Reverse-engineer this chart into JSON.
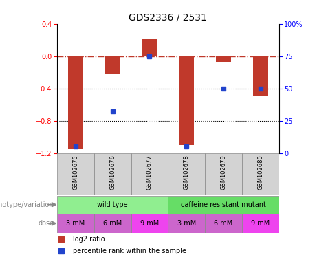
{
  "title": "GDS2336 / 2531",
  "samples": [
    "GSM102675",
    "GSM102676",
    "GSM102677",
    "GSM102678",
    "GSM102679",
    "GSM102680"
  ],
  "log2_ratios": [
    -1.15,
    -0.22,
    0.22,
    -1.1,
    -0.07,
    -0.5
  ],
  "percentile_ranks": [
    5,
    32,
    75,
    5,
    50,
    50
  ],
  "bar_color": "#c0392b",
  "dot_color": "#2244cc",
  "ylim_left": [
    -1.2,
    0.4
  ],
  "ylim_right": [
    0,
    100
  ],
  "yticks_left": [
    -1.2,
    -0.8,
    -0.4,
    0.0,
    0.4
  ],
  "yticks_right": [
    0,
    25,
    50,
    75,
    100
  ],
  "dotted_lines": [
    -0.4,
    -0.8
  ],
  "genotype_groups": [
    {
      "label": "wild type",
      "color": "#90ee90",
      "start": 0,
      "end": 3
    },
    {
      "label": "caffeine resistant mutant",
      "color": "#66dd66",
      "start": 3,
      "end": 6
    }
  ],
  "doses": [
    "3 mM",
    "6 mM",
    "9 mM",
    "3 mM",
    "6 mM",
    "9 mM"
  ],
  "dose_colors": [
    "#cc66cc",
    "#cc66cc",
    "#ee44ee",
    "#cc66cc",
    "#cc66cc",
    "#ee44ee"
  ],
  "legend_items": [
    {
      "label": "log2 ratio",
      "color": "#c0392b"
    },
    {
      "label": "percentile rank within the sample",
      "color": "#2244cc"
    }
  ],
  "genotype_label": "genotype/variation",
  "dose_label": "dose",
  "sample_bg": "#d3d3d3",
  "bar_width": 0.4,
  "title_fontsize": 10,
  "tick_fontsize": 7,
  "label_fontsize": 7,
  "sample_fontsize": 6
}
